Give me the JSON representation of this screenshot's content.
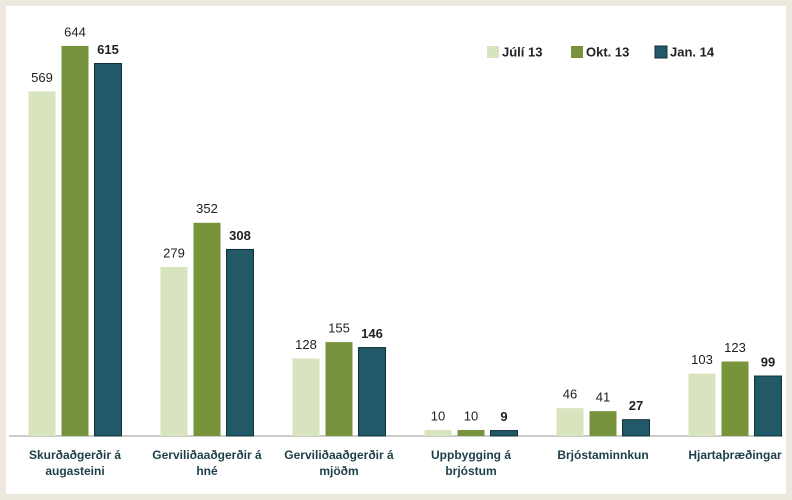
{
  "chart_data": {
    "type": "bar",
    "categories": [
      "Skurðaðgerðir á augasteini",
      "Gerviliðaaðgerðir á hné",
      "Gerviliðaaðgerðir á mjöðm",
      "Uppbygging á brjóstum",
      "Brjóstaminnkun",
      "Hjartaþræðingar"
    ],
    "series": [
      {
        "name": "Júlí 13",
        "color": "#d7e4bd",
        "values": [
          569,
          279,
          128,
          10,
          46,
          103
        ]
      },
      {
        "name": "Okt. 13",
        "color": "#77933c",
        "values": [
          644,
          352,
          155,
          10,
          41,
          123
        ]
      },
      {
        "name": "Jan. 14",
        "color": "#215968",
        "values": [
          615,
          308,
          146,
          9,
          27,
          99
        ]
      }
    ],
    "ylim": [
      0,
      700
    ],
    "legend": "top-right"
  }
}
